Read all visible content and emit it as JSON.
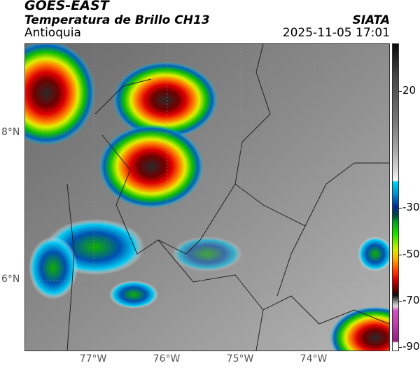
{
  "header": {
    "satellite": "GOES-EAST",
    "product": "Temperatura de Brillo CH13",
    "region": "Antioquia",
    "organization": "SIATA",
    "timestamp": "2025-11-05 17:01"
  },
  "colorbar": {
    "ticks": [
      "20",
      "-30",
      "-50",
      "-70",
      "-90"
    ],
    "range": [
      -90,
      40
    ],
    "colors": {
      "cold_top": "#8b1f7a",
      "red": "#d00000",
      "yellow": "#f0f000",
      "green": "#20e000",
      "blue": "#002a90",
      "cyan": "#00d0f0",
      "warm": "#0a0a0a"
    }
  },
  "map": {
    "lat_labels": [
      "8°N",
      "6°N"
    ],
    "lon_labels": [
      "77°W",
      "76°W",
      "75°W",
      "74°W"
    ]
  }
}
